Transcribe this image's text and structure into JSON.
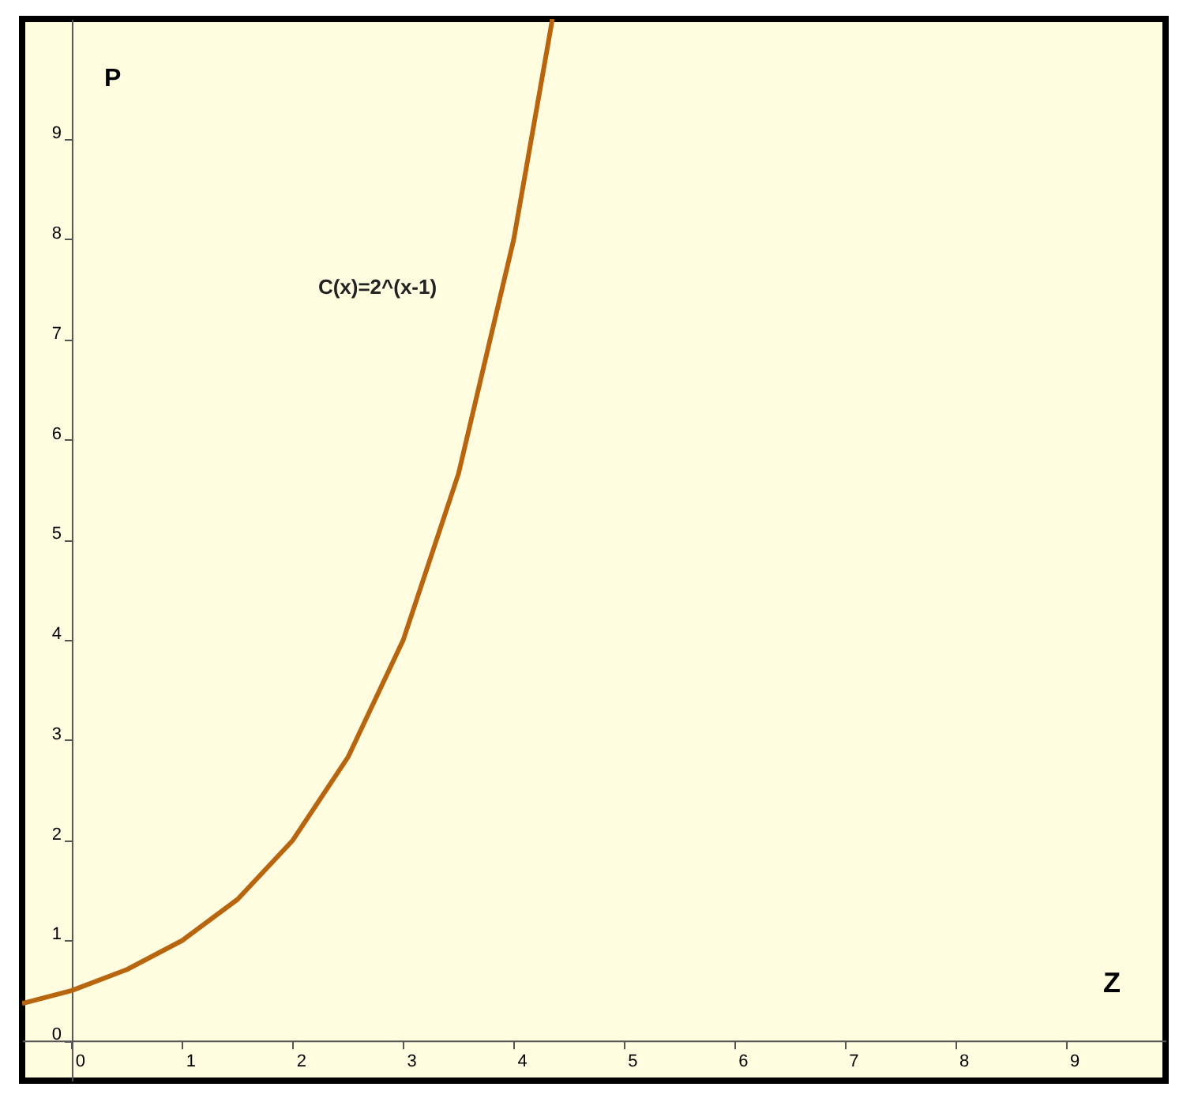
{
  "chart_data": {
    "type": "line",
    "x": [
      -0.45,
      0,
      0.5,
      1,
      1.5,
      2,
      2.5,
      3,
      3.5,
      4,
      4.35
    ],
    "series": [
      {
        "color": "#b8650f",
        "values": [
          0.37,
          0.5,
          0.71,
          1,
          1.41,
          2,
          2.83,
          4,
          5.66,
          8,
          10.2
        ]
      }
    ],
    "xlim": [
      -0.45,
      9.9
    ],
    "ylim": [
      -0.4,
      10.2
    ],
    "xticks": [
      0,
      1,
      2,
      3,
      4,
      5,
      6,
      7,
      8,
      9
    ],
    "yticks": [
      0,
      1,
      2,
      3,
      4,
      5,
      6,
      7,
      8,
      9
    ],
    "xlabel": "Z",
    "ylabel": "P",
    "annotations": [
      "C(x)=2^(x-1)"
    ],
    "grid": false
  }
}
